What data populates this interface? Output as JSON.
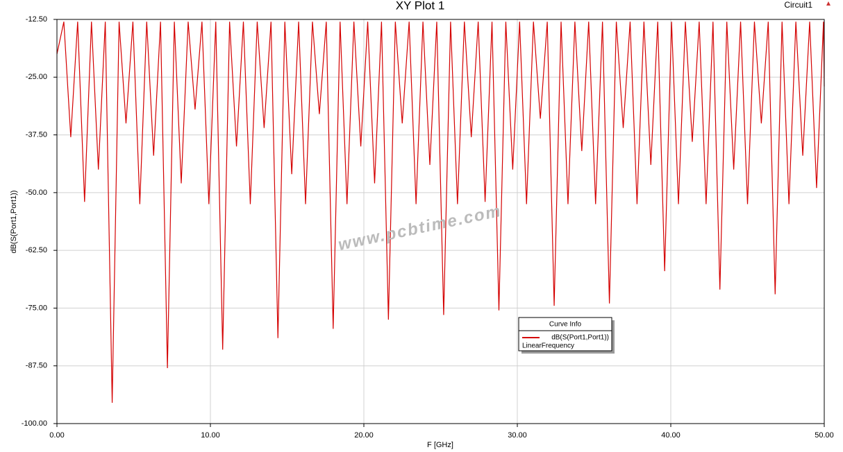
{
  "chart_data": {
    "type": "line",
    "title": "XY Plot 1",
    "corner_label": "Circuit1",
    "x_label": "F [GHz]",
    "y_label": "dB(S(Port1,Port1))",
    "legend_title": "Curve Info",
    "legend_note": "LinearFrequency",
    "watermark": "www.pcbtime.com",
    "grid": true,
    "xlim": [
      0,
      50
    ],
    "xticks": [
      {
        "value": 0,
        "label": "0.00"
      },
      {
        "value": 10,
        "label": "10.00"
      },
      {
        "value": 20,
        "label": "20.00"
      },
      {
        "value": 30,
        "label": "30.00"
      },
      {
        "value": 40,
        "label": "40.00"
      },
      {
        "value": 50,
        "label": "50.00"
      }
    ],
    "ylim": [
      -100,
      -12.5
    ],
    "yticks": [
      {
        "value": -12.5,
        "label": "-12.50"
      },
      {
        "value": -25,
        "label": "-25.00"
      },
      {
        "value": -37.5,
        "label": "-37.50"
      },
      {
        "value": -50,
        "label": "-50.00"
      },
      {
        "value": -62.5,
        "label": "-62.50"
      },
      {
        "value": -75,
        "label": "-75.00"
      },
      {
        "value": -87.5,
        "label": "-87.50"
      },
      {
        "value": -100,
        "label": "-100.00"
      }
    ],
    "x": [
      0,
      0.45,
      0.9,
      1.35,
      1.8,
      2.25,
      2.7,
      3.15,
      3.6,
      4.05,
      4.5,
      4.95,
      5.4,
      5.85,
      6.3,
      6.75,
      7.2,
      7.65,
      8.1,
      8.55,
      9,
      9.45,
      9.9,
      10.35,
      10.8,
      11.25,
      11.7,
      12.15,
      12.6,
      13.05,
      13.5,
      13.95,
      14.4,
      14.85,
      15.3,
      15.75,
      16.2,
      16.65,
      17.1,
      17.55,
      18,
      18.45,
      18.9,
      19.35,
      19.8,
      20.25,
      20.7,
      21.15,
      21.6,
      22.05,
      22.5,
      22.95,
      23.4,
      23.85,
      24.3,
      24.75,
      25.2,
      25.65,
      26.1,
      26.55,
      27,
      27.45,
      27.9,
      28.35,
      28.8,
      29.25,
      29.7,
      30.15,
      30.6,
      31.05,
      31.5,
      31.95,
      32.4,
      32.85,
      33.3,
      33.75,
      34.2,
      34.65,
      35.1,
      35.55,
      36,
      36.45,
      36.9,
      37.35,
      37.8,
      38.25,
      38.7,
      39.15,
      39.6,
      40.05,
      40.5,
      40.95,
      41.4,
      41.85,
      42.3,
      42.75,
      43.2,
      43.65,
      44.1,
      44.55,
      45,
      45.45,
      45.9,
      46.35,
      46.8,
      47.25,
      47.7,
      48.15,
      48.6,
      49.05,
      49.5,
      49.95,
      50
    ],
    "series": [
      {
        "name": "dB(S(Port1,Port1))",
        "color": "#d40000",
        "values": [
          -20,
          -13,
          -38,
          -13,
          -52,
          -13,
          -45,
          -13,
          -95.5,
          -13,
          -35,
          -13,
          -52.5,
          -13,
          -42,
          -13,
          -88,
          -13,
          -48,
          -13,
          -32,
          -13,
          -52.5,
          -13,
          -84,
          -13,
          -40,
          -13,
          -52.5,
          -13,
          -36,
          -13,
          -81.5,
          -13,
          -46,
          -13,
          -52.5,
          -13,
          -33,
          -13,
          -79.5,
          -13,
          -52.5,
          -13,
          -40,
          -13,
          -48,
          -13,
          -77.5,
          -13,
          -35,
          -13,
          -52.5,
          -13,
          -44,
          -13,
          -76.5,
          -13,
          -52.5,
          -13,
          -38,
          -13,
          -52,
          -13,
          -75.5,
          -13,
          -45,
          -13,
          -52.5,
          -13,
          -34,
          -13,
          -74.5,
          -13,
          -52.5,
          -13,
          -41,
          -13,
          -52.5,
          -13,
          -74,
          -13,
          -36,
          -13,
          -52.5,
          -13,
          -44,
          -13,
          -67,
          -13,
          -52.5,
          -13,
          -39,
          -13,
          -52.5,
          -13,
          -71,
          -13,
          -45,
          -13,
          -52.5,
          -13,
          -35,
          -13,
          -72,
          -13,
          -52.5,
          -13,
          -42,
          -13,
          -49,
          -13,
          -27
        ]
      }
    ]
  }
}
